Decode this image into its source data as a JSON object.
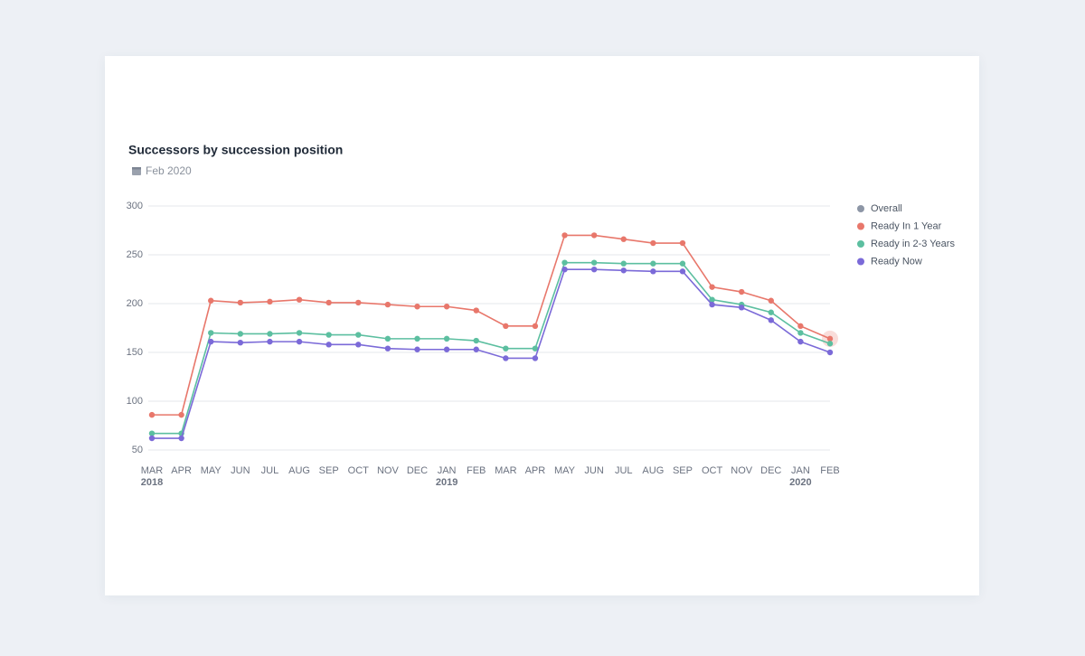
{
  "chart_data": {
    "type": "line",
    "title": "Successors by succession position",
    "subtitle": "Feb 2020",
    "categories": [
      "MAR",
      "APR",
      "MAY",
      "JUN",
      "JUL",
      "AUG",
      "SEP",
      "OCT",
      "NOV",
      "DEC",
      "JAN",
      "FEB",
      "MAR",
      "APR",
      "MAY",
      "JUN",
      "JUL",
      "AUG",
      "SEP",
      "OCT",
      "NOV",
      "DEC",
      "JAN",
      "FEB"
    ],
    "year_labels": [
      "2018",
      null,
      null,
      null,
      null,
      null,
      null,
      null,
      null,
      null,
      "2019",
      null,
      null,
      null,
      null,
      null,
      null,
      null,
      null,
      null,
      null,
      null,
      "2020",
      null
    ],
    "ylim": [
      50,
      300
    ],
    "yticks": [
      50,
      100,
      150,
      200,
      250,
      300
    ],
    "grid": true,
    "legend": "right",
    "series": [
      {
        "name": "Overall",
        "color": "#8d96a6",
        "visible": false
      },
      {
        "name": "Ready In 1 Year",
        "color": "#e8776b",
        "values": [
          86,
          86,
          203,
          201,
          202,
          204,
          201,
          201,
          199,
          197,
          197,
          193,
          177,
          177,
          270,
          270,
          266,
          262,
          262,
          217,
          212,
          203,
          177,
          164
        ]
      },
      {
        "name": "Ready in 2-3 Years",
        "color": "#5cbfa0",
        "values": [
          67,
          67,
          170,
          169,
          169,
          170,
          168,
          168,
          164,
          164,
          164,
          162,
          154,
          154,
          242,
          242,
          241,
          241,
          241,
          204,
          199,
          191,
          170,
          159
        ]
      },
      {
        "name": "Ready Now",
        "color": "#7b6ad8",
        "values": [
          62,
          62,
          161,
          160,
          161,
          161,
          158,
          158,
          154,
          153,
          153,
          153,
          144,
          144,
          235,
          235,
          234,
          233,
          233,
          199,
          196,
          183,
          161,
          150
        ]
      }
    ],
    "highlight": {
      "series": 1,
      "index": 23
    }
  }
}
